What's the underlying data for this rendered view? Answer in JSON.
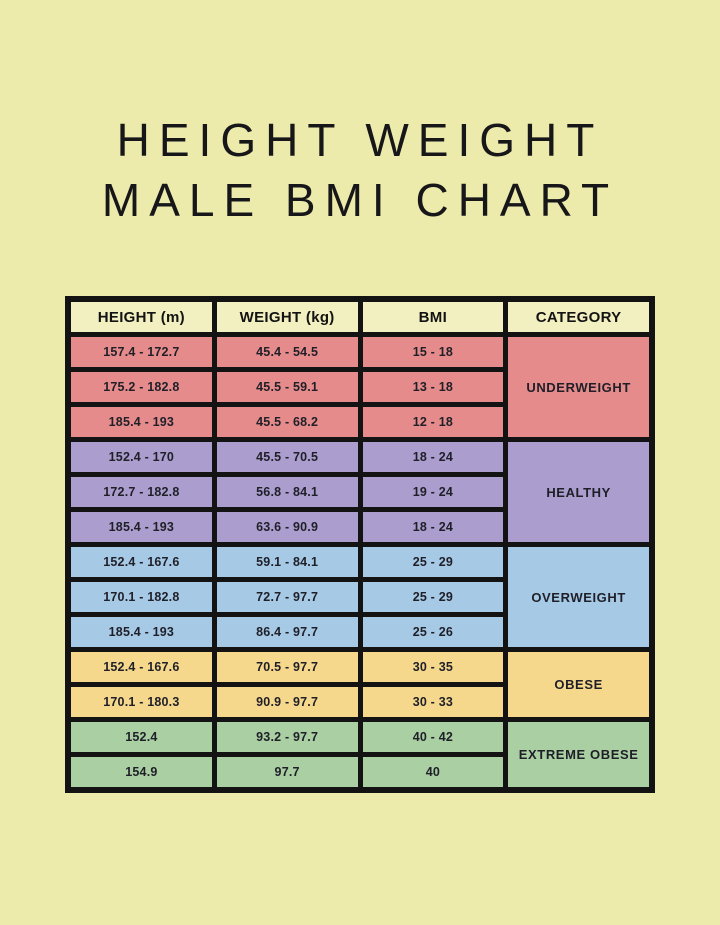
{
  "title": {
    "line1": "HEIGHT WEIGHT",
    "line2": "MALE BMI CHART"
  },
  "colors": {
    "page_background": "#EDEBAC",
    "header_cell_background": "#F2F0C0",
    "table_border": "#131313",
    "title_text": "#17171A",
    "cell_text": "#1F1F28",
    "underweight": "#E68B8B",
    "healthy": "#AB9ECE",
    "overweight": "#A6C9E6",
    "obese": "#F6D88D",
    "extreme_obese": "#A9CFA2"
  },
  "chart_data": {
    "type": "table",
    "title": "HEIGHT WEIGHT MALE BMI CHART",
    "columns": [
      "HEIGHT (m)",
      "WEIGHT (kg)",
      "BMI",
      "CATEGORY"
    ],
    "groups": [
      {
        "category": "UNDERWEIGHT",
        "color_key": "underweight",
        "rows": [
          {
            "height": "157.4 - 172.7",
            "weight": "45.4 - 54.5",
            "bmi": "15 - 18"
          },
          {
            "height": "175.2 - 182.8",
            "weight": "45.5 - 59.1",
            "bmi": "13 - 18"
          },
          {
            "height": "185.4 - 193",
            "weight": "45.5 - 68.2",
            "bmi": "12 - 18"
          }
        ]
      },
      {
        "category": "HEALTHY",
        "color_key": "healthy",
        "rows": [
          {
            "height": "152.4 - 170",
            "weight": "45.5 - 70.5",
            "bmi": "18 - 24"
          },
          {
            "height": "172.7 - 182.8",
            "weight": "56.8 - 84.1",
            "bmi": "19 - 24"
          },
          {
            "height": "185.4 - 193",
            "weight": "63.6 - 90.9",
            "bmi": "18 - 24"
          }
        ]
      },
      {
        "category": "OVERWEIGHT",
        "color_key": "overweight",
        "rows": [
          {
            "height": "152.4 - 167.6",
            "weight": "59.1 - 84.1",
            "bmi": "25 - 29"
          },
          {
            "height": "170.1 - 182.8",
            "weight": "72.7 - 97.7",
            "bmi": "25 - 29"
          },
          {
            "height": "185.4 - 193",
            "weight": "86.4 - 97.7",
            "bmi": "25 - 26"
          }
        ]
      },
      {
        "category": "OBESE",
        "color_key": "obese",
        "rows": [
          {
            "height": "152.4 - 167.6",
            "weight": "70.5 - 97.7",
            "bmi": "30 - 35"
          },
          {
            "height": "170.1 - 180.3",
            "weight": "90.9 - 97.7",
            "bmi": "30 - 33"
          }
        ]
      },
      {
        "category": "EXTREME OBESE",
        "color_key": "extreme_obese",
        "rows": [
          {
            "height": "152.4",
            "weight": "93.2 - 97.7",
            "bmi": "40 - 42"
          },
          {
            "height": "154.9",
            "weight": "97.7",
            "bmi": "40"
          }
        ]
      }
    ]
  }
}
